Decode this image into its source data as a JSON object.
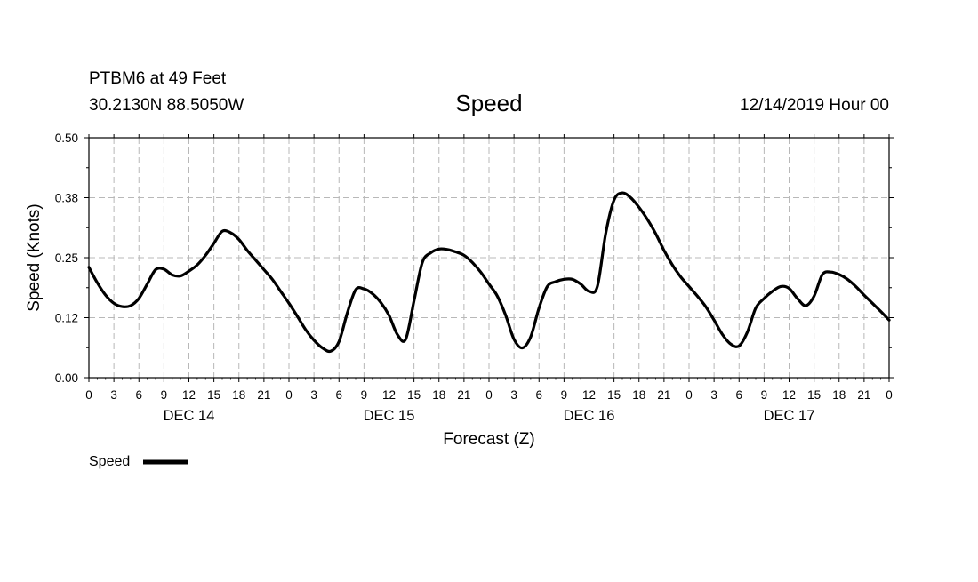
{
  "header": {
    "station": "PTBM6 at 49 Feet",
    "location": "30.2130N 88.5050W",
    "title": "Speed",
    "datetime": "12/14/2019 Hour 00"
  },
  "chart_data": {
    "type": "line",
    "title": "Speed",
    "xlabel": "Forecast (Z)",
    "ylabel": "Speed (Knots)",
    "ylim": [
      0,
      0.5
    ],
    "yticks": [
      "0.00",
      "0.12",
      "0.25",
      "0.38",
      "0.50"
    ],
    "xlim": [
      0,
      96
    ],
    "x_tick_labels": [
      "0",
      "3",
      "6",
      "9",
      "12",
      "15",
      "18",
      "21",
      "0",
      "3",
      "6",
      "9",
      "12",
      "15",
      "18",
      "21",
      "0",
      "3",
      "6",
      "9",
      "12",
      "15",
      "18",
      "21",
      "0",
      "3",
      "6",
      "9",
      "12",
      "15",
      "18",
      "21",
      "0"
    ],
    "day_labels": [
      "DEC 14",
      "DEC 15",
      "DEC 16",
      "DEC 17"
    ],
    "grid": true,
    "legend": "bottom-left",
    "series": [
      {
        "name": "Speed",
        "color": "#000000",
        "x": [
          0,
          1,
          2,
          3,
          4,
          5,
          6,
          7,
          8,
          9,
          10,
          11,
          12,
          13,
          14,
          15,
          16,
          17,
          18,
          19,
          20,
          21,
          22,
          23,
          24,
          25,
          26,
          27,
          28,
          29,
          30,
          31,
          32,
          33,
          34,
          35,
          36,
          37,
          38,
          39,
          40,
          41,
          42,
          43,
          44,
          45,
          46,
          47,
          48,
          49,
          50,
          51,
          52,
          53,
          54,
          55,
          56,
          57,
          58,
          59,
          60,
          61,
          62,
          63,
          64,
          65,
          66,
          67,
          68,
          69,
          70,
          71,
          72,
          73,
          74,
          75,
          76,
          77,
          78,
          79,
          80,
          81,
          82,
          83,
          84,
          85,
          86,
          87,
          88,
          89,
          90,
          91,
          92,
          93,
          94,
          95,
          96
        ],
        "values": [
          0.23,
          0.198,
          0.172,
          0.155,
          0.148,
          0.15,
          0.165,
          0.195,
          0.225,
          0.226,
          0.214,
          0.212,
          0.222,
          0.235,
          0.255,
          0.28,
          0.305,
          0.302,
          0.288,
          0.265,
          0.245,
          0.225,
          0.205,
          0.18,
          0.155,
          0.128,
          0.1,
          0.078,
          0.062,
          0.055,
          0.075,
          0.135,
          0.183,
          0.185,
          0.175,
          0.157,
          0.13,
          0.09,
          0.08,
          0.16,
          0.24,
          0.26,
          0.268,
          0.267,
          0.262,
          0.255,
          0.24,
          0.22,
          0.195,
          0.17,
          0.13,
          0.08,
          0.062,
          0.085,
          0.145,
          0.19,
          0.2,
          0.205,
          0.205,
          0.195,
          0.18,
          0.19,
          0.3,
          0.37,
          0.385,
          0.375,
          0.355,
          0.33,
          0.3,
          0.265,
          0.235,
          0.21,
          0.19,
          0.17,
          0.148,
          0.12,
          0.09,
          0.07,
          0.066,
          0.095,
          0.145,
          0.165,
          0.18,
          0.19,
          0.186,
          0.165,
          0.15,
          0.17,
          0.215,
          0.22,
          0.215,
          0.205,
          0.19,
          0.172,
          0.155,
          0.138,
          0.12
        ]
      }
    ]
  }
}
